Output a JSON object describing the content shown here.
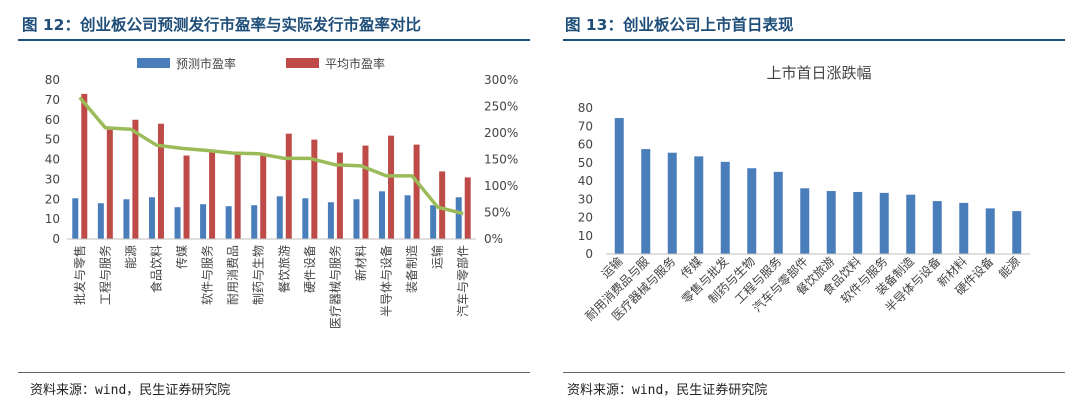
{
  "left_panel": {
    "figure_title": "图 12：创业板公司预测发行市盈率与实际发行市盈率对比",
    "source": "资料来源：wind，民生证券研究院"
  },
  "right_panel": {
    "figure_title": "图 13：创业板公司上市首日表现",
    "source": "资料来源：wind，民生证券研究院"
  },
  "chart_data": [
    {
      "type": "bar",
      "title": "",
      "categories": [
        "批发与零售",
        "工程与服务",
        "能源",
        "食品饮料",
        "传媒",
        "软件与服务",
        "耐用消费品",
        "制药与生物",
        "餐饮旅游",
        "硬件设备",
        "医疗器械与服务",
        "新材料",
        "半导体与设备",
        "装备制造",
        "运输",
        "汽车与零部件"
      ],
      "series": [
        {
          "name": "预测市盈率",
          "axis": "left",
          "kind": "bar",
          "color": "#4a7ebb",
          "values": [
            20.5,
            18,
            20,
            21,
            16,
            17.5,
            16.5,
            17,
            21.5,
            20.5,
            18.5,
            20,
            24,
            22,
            17,
            21
          ]
        },
        {
          "name": "平均市盈率",
          "axis": "left",
          "kind": "bar",
          "color": "#be4b48",
          "values": [
            73,
            55,
            60,
            58,
            42,
            45,
            43,
            43,
            53,
            50,
            43.5,
            47,
            52,
            47.5,
            34,
            31
          ]
        },
        {
          "name": "",
          "axis": "right",
          "kind": "line",
          "color": "#9bbb59",
          "values": [
            2.67,
            2.1,
            2.07,
            1.77,
            1.71,
            1.67,
            1.62,
            1.61,
            1.52,
            1.52,
            1.4,
            1.38,
            1.19,
            1.19,
            0.6,
            0.48
          ]
        }
      ],
      "y_left": {
        "ticks": [
          "0",
          "10",
          "20",
          "30",
          "40",
          "50",
          "60",
          "70",
          "80"
        ],
        "ylim": [
          0,
          80
        ]
      },
      "y_right": {
        "ticks": [
          "0%",
          "50%",
          "100%",
          "150%",
          "200%",
          "250%",
          "300%"
        ],
        "ylim": [
          0,
          3
        ]
      },
      "legend_position": "top"
    },
    {
      "type": "bar",
      "title": "上市首日涨跌幅",
      "categories": [
        "运输",
        "耐用消费品与服",
        "医疗器械与服务",
        "传媒",
        "零售与批发",
        "制药与生物",
        "工程与服务",
        "汽车与零部件",
        "餐饮旅游",
        "食品饮料",
        "软件与服务",
        "装备制造",
        "半导体与设备",
        "新材料",
        "硬件设备",
        "能源"
      ],
      "series": [
        {
          "name": "",
          "color": "#4a7ebb",
          "values": [
            74.5,
            57.5,
            55.5,
            53.5,
            50.5,
            47,
            45,
            36,
            34.5,
            34,
            33.5,
            32.5,
            29,
            28,
            25,
            23.5
          ]
        }
      ],
      "y": {
        "ticks": [
          "0",
          "10",
          "20",
          "30",
          "40",
          "50",
          "60",
          "70",
          "80"
        ],
        "ylim": [
          0,
          80
        ]
      },
      "legend_position": "none"
    }
  ]
}
